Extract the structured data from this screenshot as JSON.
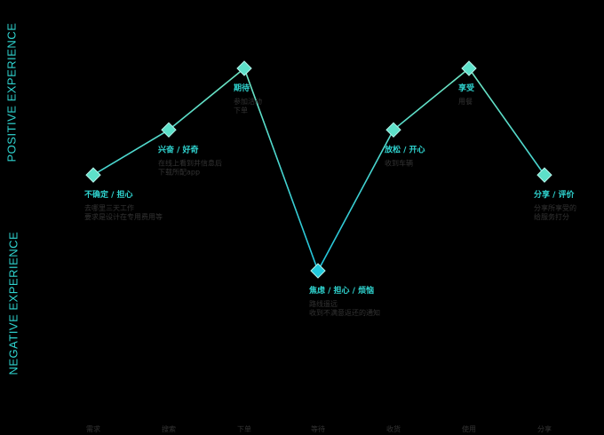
{
  "axis": {
    "positive": "POSITIVE EXPERIENCE",
    "negative": "NEGATIVE EXPERIENCE"
  },
  "colors": {
    "line": "#5de0c9",
    "accent": "#2fd3cf",
    "muted": "#333333",
    "background": "#000000"
  },
  "points": [
    {
      "emotion": "不确定 / 担心",
      "notes": [
        "去哪里三天工作",
        "要求是设计在专用费用等"
      ],
      "level": 0.22
    },
    {
      "emotion": "兴奋 / 好奇",
      "notes": [
        "在线上看到并信息后",
        "下载所配app"
      ],
      "level": 0.55
    },
    {
      "emotion": "期待",
      "notes": [
        "参加活动",
        "下单"
      ],
      "level": 1.0
    },
    {
      "emotion": "焦虑 / 担心 / 烦恼",
      "notes": [
        "路线遥远",
        "收到不满意返还的通知"
      ],
      "level": -0.52
    },
    {
      "emotion": "放松 / 开心",
      "notes": [
        "收到车辆"
      ],
      "level": 0.55
    },
    {
      "emotion": "享受",
      "notes": [
        "用餐"
      ],
      "level": 1.0
    },
    {
      "emotion": "分享 / 评价",
      "notes": [
        "分享所享受的",
        "给服务打分"
      ],
      "level": 0.22
    }
  ],
  "stages": [
    "需求",
    "搜索",
    "下单",
    "等待",
    "收货",
    "使用",
    "分享"
  ]
}
